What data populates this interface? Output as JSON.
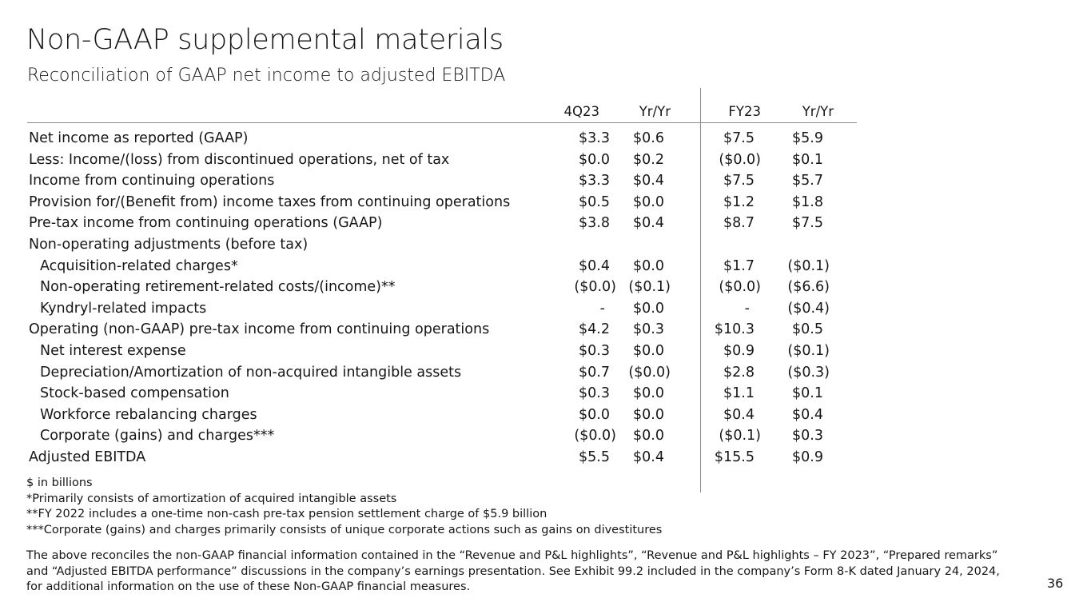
{
  "title": "Non-GAAP supplemental materials",
  "subtitle": "Reconciliation of GAAP net income to adjusted EBITDA",
  "columns": [
    "4Q23",
    "Yr/Yr",
    "FY23",
    "Yr/Yr"
  ],
  "rows": [
    {
      "label": "Net income as reported (GAAP)",
      "indent": false,
      "values": [
        "$3.3",
        "$0.6",
        "$7.5",
        "$5.9"
      ]
    },
    {
      "label": "Less: Income/(loss) from discontinued operations, net of tax",
      "indent": false,
      "values": [
        "$0.0",
        "$0.2",
        "($0.0)",
        "$0.1"
      ]
    },
    {
      "label": "Income from continuing operations",
      "indent": false,
      "values": [
        "$3.3",
        "$0.4",
        "$7.5",
        "$5.7"
      ]
    },
    {
      "label": "Provision for/(Benefit from) income taxes from continuing operations",
      "indent": false,
      "values": [
        "$0.5",
        "$0.0",
        "$1.2",
        "$1.8"
      ]
    },
    {
      "label": "Pre-tax income from continuing operations (GAAP)",
      "indent": false,
      "values": [
        "$3.8",
        "$0.4",
        "$8.7",
        "$7.5"
      ]
    },
    {
      "label": "Non-operating adjustments (before tax)",
      "indent": false,
      "values": [
        "",
        "",
        "",
        ""
      ]
    },
    {
      "label": "Acquisition-related charges*",
      "indent": true,
      "values": [
        "$0.4",
        "$0.0",
        "$1.7",
        "($0.1)"
      ]
    },
    {
      "label": "Non-operating retirement-related costs/(income)**",
      "indent": true,
      "values": [
        "($0.0)",
        "($0.1)",
        "($0.0)",
        "($6.6)"
      ]
    },
    {
      "label": "Kyndryl-related impacts",
      "indent": true,
      "values": [
        "-",
        "$0.0",
        "-",
        "($0.4)"
      ]
    },
    {
      "label": "Operating (non-GAAP) pre-tax income from continuing operations",
      "indent": false,
      "values": [
        "$4.2",
        "$0.3",
        "$10.3",
        "$0.5"
      ]
    },
    {
      "label": "Net interest expense",
      "indent": true,
      "values": [
        "$0.3",
        "$0.0",
        "$0.9",
        "($0.1)"
      ]
    },
    {
      "label": "Depreciation/Amortization of non-acquired intangible assets",
      "indent": true,
      "values": [
        "$0.7",
        "($0.0)",
        "$2.8",
        "($0.3)"
      ]
    },
    {
      "label": "Stock-based compensation",
      "indent": true,
      "values": [
        "$0.3",
        "$0.0",
        "$1.1",
        "$0.1"
      ]
    },
    {
      "label": "Workforce rebalancing charges",
      "indent": true,
      "values": [
        "$0.0",
        "$0.0",
        "$0.4",
        "$0.4"
      ]
    },
    {
      "label": "Corporate (gains) and charges***",
      "indent": true,
      "values": [
        "($0.0)",
        "$0.0",
        "($0.1)",
        "$0.3"
      ]
    },
    {
      "label": "Adjusted EBITDA",
      "indent": false,
      "values": [
        "$5.5",
        "$0.4",
        "$15.5",
        "$0.9"
      ]
    }
  ],
  "notes": [
    "$ in billions",
    "*Primarily consists of amortization of acquired intangible assets",
    "**FY 2022 includes a one-time non-cash pre-tax pension settlement charge of $5.9 billion",
    "***Corporate (gains) and charges primarily consists of unique corporate actions such as gains on divestitures"
  ],
  "disclaimer": "The above reconciles the non-GAAP financial information contained in the “Revenue and P&L highlights”, “Revenue and P&L highlights – FY 2023”,  “Prepared remarks” and “Adjusted EBITDA performance” discussions in the company’s earnings presentation. See Exhibit 99.2 included in the company’s Form 8-K dated January 24, 2024, for additional information on the use of these Non-GAAP financial measures.",
  "page_number": "36"
}
